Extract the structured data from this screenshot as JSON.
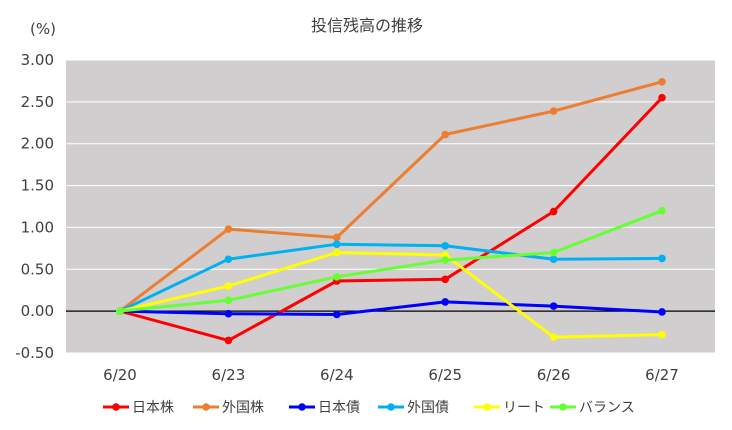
{
  "chart_data": {
    "type": "line",
    "title": "投信残高の推移",
    "unit_label": "(%)",
    "categories": [
      "6/20",
      "6/23",
      "6/24",
      "6/25",
      "6/26",
      "6/27"
    ],
    "ylim": [
      -0.5,
      3.0
    ],
    "y_ticks": [
      "3.00",
      "2.50",
      "2.00",
      "1.50",
      "1.00",
      "0.50",
      "0.00",
      "-0.50"
    ],
    "y_tick_values": [
      3.0,
      2.5,
      2.0,
      1.5,
      1.0,
      0.5,
      0.0,
      -0.5
    ],
    "negative_tick_color": "#e00000",
    "plot_background": "#d0cece",
    "grid": true,
    "legend_position": "bottom",
    "series": [
      {
        "name": "日本株",
        "color": "#ff0000",
        "values": [
          0.0,
          -0.35,
          0.36,
          0.38,
          1.19,
          2.55
        ]
      },
      {
        "name": "外国株",
        "color": "#ed7d31",
        "values": [
          0.0,
          0.98,
          0.88,
          2.11,
          2.39,
          2.74
        ]
      },
      {
        "name": "日本債",
        "color": "#0000ff",
        "values": [
          0.0,
          -0.03,
          -0.04,
          0.11,
          0.06,
          -0.01
        ]
      },
      {
        "name": "外国債",
        "color": "#00b0f0",
        "values": [
          0.0,
          0.62,
          0.8,
          0.78,
          0.62,
          0.63
        ]
      },
      {
        "name": "リート",
        "color": "#ffff00",
        "values": [
          0.0,
          0.3,
          0.7,
          0.67,
          -0.31,
          -0.28
        ]
      },
      {
        "name": "バランス",
        "color": "#66ff33",
        "values": [
          0.0,
          0.13,
          0.41,
          0.61,
          0.7,
          1.2
        ]
      }
    ]
  }
}
